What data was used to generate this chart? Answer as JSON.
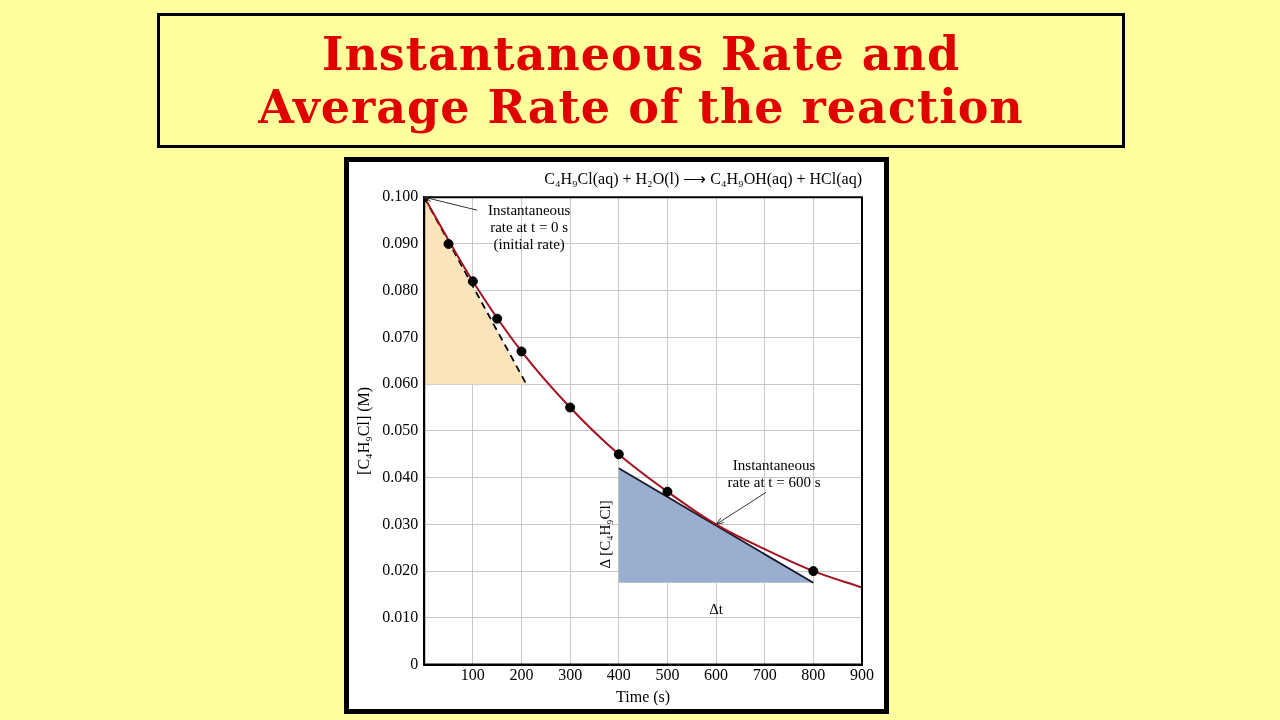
{
  "chart_data": {
    "type": "scatter",
    "title": "Instantaneous Rate and\nAverage Rate of the reaction",
    "subtitle": "C₄H₉Cl(aq) + H₂O(l) ⟶ C₄H₉OH(aq) + HCl(aq)",
    "xlabel": "Time (s)",
    "ylabel": "[C₄H₉Cl] (M)",
    "x": [
      0,
      50,
      100,
      150,
      200,
      300,
      400,
      500,
      800
    ],
    "series": [
      {
        "type": "line",
        "color": "#a3121f",
        "x": [
          0,
          100,
          200,
          300,
          400,
          500,
          600,
          700,
          800,
          900
        ],
        "values": [
          0.1,
          0.082,
          0.067,
          0.055,
          0.045,
          0.037,
          0.03,
          0.0247,
          0.02,
          0.0165
        ],
        "marker": "none",
        "line_style": "solid"
      },
      {
        "type": "line",
        "color": "#000000",
        "x": [
          0,
          210
        ],
        "values": [
          0.1,
          0.06
        ],
        "lower": [
          0.06,
          0.06
        ],
        "upper": [
          0.1,
          0.06
        ],
        "marker": "none",
        "line_style": "dashed"
      },
      {
        "type": "line",
        "color": "#1a1a2a",
        "x": [
          400,
          800
        ],
        "values": [
          0.042,
          0.0175
        ],
        "lower": [
          0.0175,
          0.0175
        ],
        "upper": [
          0.042,
          0.0175
        ],
        "marker": "none",
        "line_style": "solid"
      },
      {
        "type": "scatter",
        "color": "#000000",
        "values": [
          0.1,
          0.09,
          0.082,
          0.074,
          0.067,
          0.055,
          0.045,
          0.037,
          0.02
        ],
        "marker": "circle"
      }
    ],
    "xlim": [
      0,
      900
    ],
    "xticks": [
      100,
      200,
      300,
      400,
      500,
      600,
      700,
      800,
      900
    ],
    "ylim": [
      0,
      0.1
    ],
    "yticks": [
      {
        "value": 0,
        "label": "0"
      },
      {
        "value": 0.01,
        "label": "0.010"
      },
      {
        "value": 0.02,
        "label": "0.020"
      },
      {
        "value": 0.03,
        "label": "0.030"
      },
      {
        "value": 0.04,
        "label": "0.040"
      },
      {
        "value": 0.05,
        "label": "0.050"
      },
      {
        "value": 0.06,
        "label": "0.060"
      },
      {
        "value": 0.07,
        "label": "0.070"
      },
      {
        "value": 0.08,
        "label": "0.080"
      },
      {
        "value": 0.09,
        "label": "0.090"
      },
      {
        "value": 0.1,
        "label": "0.100"
      }
    ],
    "grid": true,
    "legend": false,
    "annotations": [
      {
        "text": "Instantaneous\nrate at t = 0 s\n(initial rate)",
        "x": 0,
        "y": 0.1
      },
      {
        "text": "Instantaneous\nrate at t = 600 s",
        "x": 600,
        "y": 0.03
      },
      {
        "text": "Δ [C₄H₉Cl]",
        "x": 400,
        "y": 0.03
      },
      {
        "text": "Δt",
        "x": 600,
        "y": 0.0175
      }
    ]
  }
}
